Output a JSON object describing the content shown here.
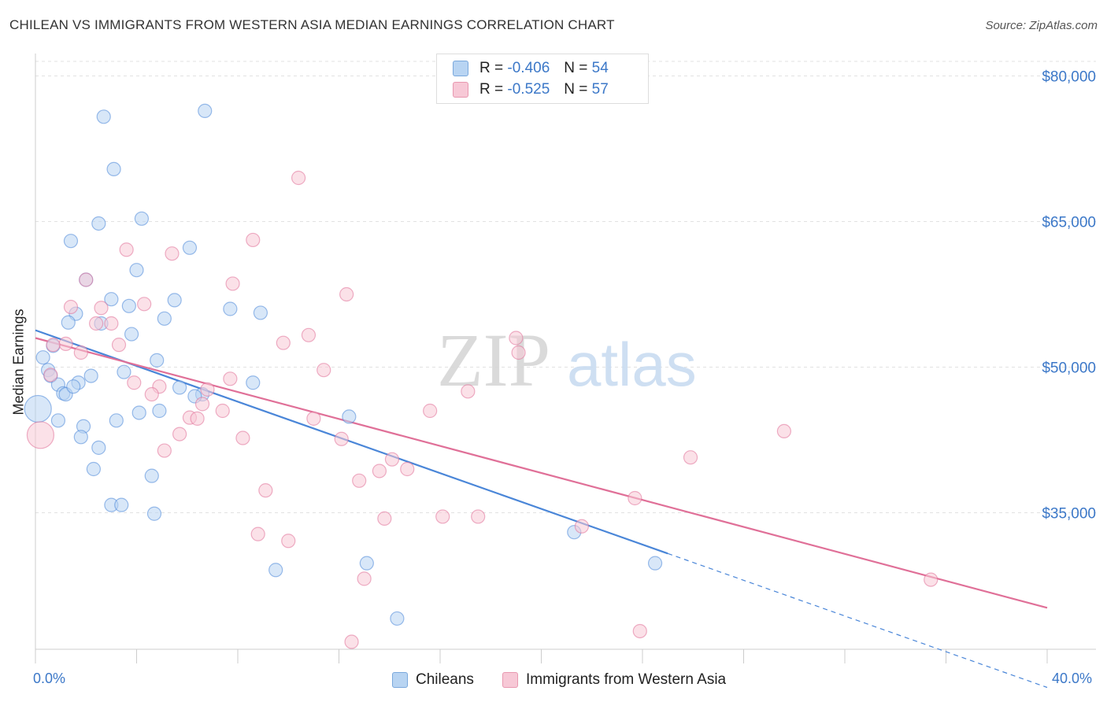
{
  "title": "CHILEAN VS IMMIGRANTS FROM WESTERN ASIA MEDIAN EARNINGS CORRELATION CHART",
  "source": "Source: ZipAtlas.com",
  "watermark": {
    "zip": "ZIP",
    "atlas": "atlas"
  },
  "legend_stats": [
    {
      "r_label": "R =",
      "r_value": "-0.406",
      "n_label": "N =",
      "n_value": "54"
    },
    {
      "r_label": "R =",
      "r_value": "-0.525",
      "n_label": "N =",
      "n_value": "57"
    }
  ],
  "x_tick_labels": {
    "min": "0.0%",
    "max": "40.0%"
  },
  "chart_data": {
    "type": "scatter",
    "title": "CHILEAN VS IMMIGRANTS FROM WESTERN ASIA MEDIAN EARNINGS CORRELATION CHART",
    "xlabel": "",
    "ylabel": "Median Earnings",
    "xlim": [
      0,
      40
    ],
    "ylim": [
      20000,
      81500
    ],
    "y_ticks": [
      {
        "value": 35000,
        "label": "$35,000"
      },
      {
        "value": 50000,
        "label": "$50,000"
      },
      {
        "value": 65000,
        "label": "$65,000"
      },
      {
        "value": 80000,
        "label": "$80,000"
      }
    ],
    "grid": true,
    "series": [
      {
        "name": "Chileans",
        "color": "#4a86d8",
        "fill": "#b8d4f2",
        "trend": {
          "x0": 0,
          "y0": 53800,
          "x1": 25,
          "y1": 30800,
          "dash_to_x": 40,
          "dash_to_y": 17000
        },
        "points": [
          [
            2.7,
            75800
          ],
          [
            6.7,
            76400
          ],
          [
            3.1,
            70400
          ],
          [
            4.2,
            65300
          ],
          [
            2.5,
            64800
          ],
          [
            1.4,
            63000
          ],
          [
            6.1,
            62300
          ],
          [
            4.0,
            60000
          ],
          [
            2.0,
            59000
          ],
          [
            5.5,
            56900
          ],
          [
            3.0,
            57000
          ],
          [
            3.7,
            56300
          ],
          [
            7.7,
            56000
          ],
          [
            8.9,
            55600
          ],
          [
            1.6,
            55500
          ],
          [
            5.1,
            55000
          ],
          [
            1.3,
            54600
          ],
          [
            2.6,
            54500
          ],
          [
            3.8,
            53400
          ],
          [
            0.7,
            52200
          ],
          [
            0.3,
            51000
          ],
          [
            4.8,
            50700
          ],
          [
            0.5,
            49700
          ],
          [
            3.5,
            49500
          ],
          [
            0.6,
            49100
          ],
          [
            2.2,
            49100
          ],
          [
            0.9,
            48200
          ],
          [
            1.7,
            48400
          ],
          [
            8.6,
            48400
          ],
          [
            1.1,
            47300
          ],
          [
            1.2,
            47200
          ],
          [
            5.7,
            47900
          ],
          [
            6.6,
            47200
          ],
          [
            0.1,
            45700
          ],
          [
            4.9,
            45500
          ],
          [
            4.1,
            45300
          ],
          [
            12.4,
            44900
          ],
          [
            3.2,
            44500
          ],
          [
            0.9,
            44500
          ],
          [
            1.9,
            43900
          ],
          [
            1.8,
            42800
          ],
          [
            2.5,
            41700
          ],
          [
            2.3,
            39500
          ],
          [
            4.6,
            38800
          ],
          [
            3.0,
            35800
          ],
          [
            3.4,
            35800
          ],
          [
            4.7,
            34900
          ],
          [
            21.3,
            33000
          ],
          [
            13.1,
            29800
          ],
          [
            9.5,
            29100
          ],
          [
            24.5,
            29800
          ],
          [
            14.3,
            24100
          ],
          [
            6.3,
            47000
          ],
          [
            1.5,
            48000
          ]
        ]
      },
      {
        "name": "Immigrants from Western Asia",
        "color": "#e07098",
        "fill": "#f7c8d6",
        "trend": {
          "x0": 0,
          "y0": 53000,
          "x1": 40,
          "y1": 25200
        },
        "points": [
          [
            10.4,
            69500
          ],
          [
            8.6,
            63100
          ],
          [
            3.6,
            62100
          ],
          [
            5.4,
            61700
          ],
          [
            2.0,
            59000
          ],
          [
            7.8,
            58600
          ],
          [
            12.3,
            57500
          ],
          [
            4.3,
            56500
          ],
          [
            1.4,
            56200
          ],
          [
            2.6,
            56100
          ],
          [
            2.4,
            54500
          ],
          [
            3.0,
            54500
          ],
          [
            10.8,
            53300
          ],
          [
            19.0,
            53000
          ],
          [
            9.8,
            52500
          ],
          [
            3.3,
            52300
          ],
          [
            1.2,
            52400
          ],
          [
            0.7,
            52300
          ],
          [
            19.1,
            51500
          ],
          [
            1.8,
            51500
          ],
          [
            0.6,
            49200
          ],
          [
            11.4,
            49700
          ],
          [
            7.7,
            48800
          ],
          [
            3.9,
            48400
          ],
          [
            4.9,
            48000
          ],
          [
            6.8,
            47700
          ],
          [
            17.1,
            47500
          ],
          [
            4.6,
            47200
          ],
          [
            6.6,
            46200
          ],
          [
            15.6,
            45500
          ],
          [
            7.4,
            45500
          ],
          [
            6.1,
            44800
          ],
          [
            6.4,
            44700
          ],
          [
            11.0,
            44700
          ],
          [
            0.2,
            43000
          ],
          [
            5.7,
            43100
          ],
          [
            29.6,
            43400
          ],
          [
            8.2,
            42700
          ],
          [
            12.1,
            42600
          ],
          [
            5.1,
            41400
          ],
          [
            25.9,
            40700
          ],
          [
            14.1,
            40500
          ],
          [
            13.6,
            39300
          ],
          [
            14.7,
            39500
          ],
          [
            12.8,
            38300
          ],
          [
            9.1,
            37300
          ],
          [
            23.7,
            36500
          ],
          [
            13.8,
            34400
          ],
          [
            16.1,
            34600
          ],
          [
            17.5,
            34600
          ],
          [
            21.6,
            33600
          ],
          [
            8.8,
            32800
          ],
          [
            10.0,
            32100
          ],
          [
            13.0,
            28200
          ],
          [
            35.4,
            28100
          ],
          [
            23.9,
            22800
          ],
          [
            12.5,
            21700
          ]
        ]
      }
    ]
  },
  "bottom_legend": [
    {
      "label": "Chileans"
    },
    {
      "label": "Immigrants from Western Asia"
    }
  ]
}
